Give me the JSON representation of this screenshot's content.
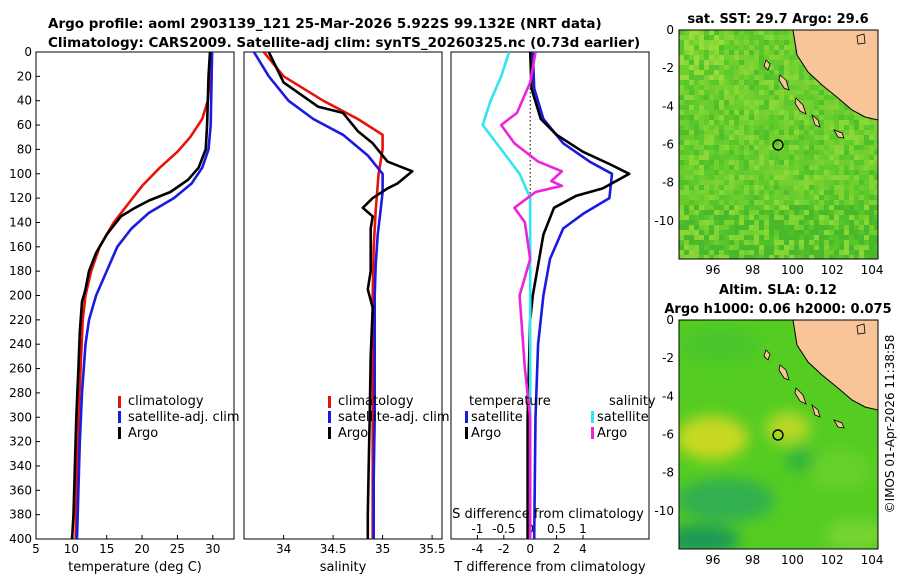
{
  "title_line1": "Argo profile: aoml 2903139_121 25-Mar-2026 5.922S 99.132E (NRT data)",
  "title_line2": "Climatology: CARS2009. Satellite-adj clim: synTS_20260325.nc (0.73d earlier)",
  "credit": "©IMOS 01-Apr-2026 11:38:58",
  "colors": {
    "climatology": "#e8120c",
    "satellite": "#1a1ae0",
    "argo": "#000000",
    "sat_salinity": "#33e6ee",
    "argo_salinity": "#ee22dd",
    "land": "#f7c597",
    "ocean": "#55cc33"
  },
  "chart_data": [
    {
      "type": "line",
      "id": "temperature",
      "xlabel": "temperature (deg C)",
      "ylabel": "",
      "xlim": [
        5,
        33
      ],
      "ylim": [
        400,
        0
      ],
      "xticks": [
        5,
        10,
        15,
        20,
        25,
        30
      ],
      "yticks": [
        0,
        20,
        40,
        60,
        80,
        100,
        120,
        140,
        160,
        180,
        200,
        220,
        240,
        260,
        280,
        300,
        320,
        340,
        360,
        380,
        400
      ],
      "legend": [
        "climatology",
        "satellite-adj. clim",
        "Argo"
      ],
      "legend_position": "lower-right",
      "series": [
        {
          "name": "climatology",
          "points": [
            [
              29.8,
              0
            ],
            [
              29.6,
              20
            ],
            [
              29.3,
              40
            ],
            [
              28.5,
              55
            ],
            [
              26.8,
              70
            ],
            [
              25,
              82
            ],
            [
              22.5,
              95
            ],
            [
              20,
              110
            ],
            [
              18,
              125
            ],
            [
              16,
              140
            ],
            [
              14,
              160
            ],
            [
              12.8,
              180
            ],
            [
              12,
              200
            ],
            [
              11.6,
              220
            ],
            [
              11.3,
              260
            ],
            [
              11,
              300
            ],
            [
              10.8,
              340
            ],
            [
              10.6,
              400
            ]
          ]
        },
        {
          "name": "satellite-adj. clim",
          "points": [
            [
              29.9,
              0
            ],
            [
              29.8,
              30
            ],
            [
              29.7,
              60
            ],
            [
              29.4,
              80
            ],
            [
              28.5,
              95
            ],
            [
              27,
              108
            ],
            [
              24.5,
              120
            ],
            [
              21,
              132
            ],
            [
              18.5,
              145
            ],
            [
              16.5,
              160
            ],
            [
              15,
              180
            ],
            [
              13.5,
              200
            ],
            [
              12.5,
              220
            ],
            [
              12,
              240
            ],
            [
              11.5,
              280
            ],
            [
              11.2,
              320
            ],
            [
              11,
              360
            ],
            [
              10.8,
              400
            ]
          ]
        },
        {
          "name": "Argo",
          "points": [
            [
              29.6,
              0
            ],
            [
              29.4,
              20
            ],
            [
              29.3,
              40
            ],
            [
              29.2,
              60
            ],
            [
              29,
              80
            ],
            [
              28,
              95
            ],
            [
              26.5,
              105
            ],
            [
              24,
              115
            ],
            [
              21,
              122
            ],
            [
              19,
              128
            ],
            [
              17,
              135
            ],
            [
              15,
              150
            ],
            [
              13.5,
              165
            ],
            [
              12.5,
              180
            ],
            [
              12,
              195
            ],
            [
              11.5,
              205
            ],
            [
              11.2,
              230
            ],
            [
              11,
              260
            ],
            [
              10.7,
              300
            ],
            [
              10.5,
              340
            ],
            [
              10.3,
              380
            ],
            [
              10.1,
              400
            ]
          ]
        }
      ]
    },
    {
      "type": "line",
      "id": "salinity",
      "xlabel": "salinity",
      "ylabel": "",
      "xlim": [
        33.6,
        35.6
      ],
      "ylim": [
        400,
        0
      ],
      "xticks": [
        34,
        34.5,
        35,
        35.5
      ],
      "legend": [
        "climatology",
        "satellite-adj. clim",
        "Argo"
      ],
      "legend_position": "lower-right",
      "series": [
        {
          "name": "climatology",
          "points": [
            [
              33.8,
              0
            ],
            [
              34.0,
              20
            ],
            [
              34.4,
              40
            ],
            [
              34.75,
              55
            ],
            [
              35.0,
              68
            ],
            [
              35.0,
              80
            ],
            [
              34.96,
              100
            ],
            [
              34.93,
              130
            ],
            [
              34.91,
              160
            ],
            [
              34.9,
              200
            ],
            [
              34.9,
              250
            ],
            [
              34.9,
              300
            ],
            [
              34.9,
              350
            ],
            [
              34.9,
              400
            ]
          ]
        },
        {
          "name": "satellite-adj. clim",
          "points": [
            [
              33.7,
              0
            ],
            [
              33.85,
              20
            ],
            [
              34.05,
              40
            ],
            [
              34.3,
              55
            ],
            [
              34.6,
              68
            ],
            [
              34.85,
              85
            ],
            [
              35.0,
              100
            ],
            [
              35.0,
              115
            ],
            [
              34.98,
              130
            ],
            [
              34.95,
              150
            ],
            [
              34.93,
              175
            ],
            [
              34.92,
              200
            ],
            [
              34.92,
              250
            ],
            [
              34.92,
              300
            ],
            [
              34.91,
              350
            ],
            [
              34.91,
              400
            ]
          ]
        },
        {
          "name": "Argo",
          "points": [
            [
              33.85,
              0
            ],
            [
              34.0,
              25
            ],
            [
              34.35,
              45
            ],
            [
              34.6,
              50
            ],
            [
              34.75,
              65
            ],
            [
              34.9,
              75
            ],
            [
              35.05,
              90
            ],
            [
              35.3,
              98
            ],
            [
              35.15,
              108
            ],
            [
              35.05,
              112
            ],
            [
              34.9,
              120
            ],
            [
              34.8,
              128
            ],
            [
              34.9,
              135
            ],
            [
              34.88,
              145
            ],
            [
              34.88,
              180
            ],
            [
              34.85,
              195
            ],
            [
              34.9,
              210
            ],
            [
              34.88,
              250
            ],
            [
              34.87,
              300
            ],
            [
              34.86,
              340
            ],
            [
              34.85,
              380
            ],
            [
              34.85,
              400
            ]
          ]
        }
      ]
    },
    {
      "type": "line",
      "id": "difference",
      "xlabel": "T difference from climatology",
      "xlabel_top": "S difference from climatology",
      "xlim": [
        -6,
        9
      ],
      "ylim": [
        400,
        0
      ],
      "xticks": [
        -4,
        -2,
        0,
        2,
        4
      ],
      "xticks_salinity": [
        "-1",
        "-0.5",
        "0",
        "0.5",
        "1"
      ],
      "xticks_salinity_values": [
        -1,
        -0.5,
        0,
        0.5,
        1
      ],
      "legend_headers": [
        "temperature",
        "salinity"
      ],
      "legend": [
        "satellite",
        "Argo",
        "satellite",
        "Argo"
      ],
      "legend_position": "lower-right",
      "series": [
        {
          "name": "T satellite",
          "points": [
            [
              0.2,
              0
            ],
            [
              0.3,
              30
            ],
            [
              1,
              55
            ],
            [
              2.5,
              75
            ],
            [
              4.5,
              90
            ],
            [
              6.2,
              100
            ],
            [
              6,
              120
            ],
            [
              4,
              133
            ],
            [
              2.5,
              145
            ],
            [
              1.5,
              170
            ],
            [
              1,
              200
            ],
            [
              0.6,
              240
            ],
            [
              0.4,
              300
            ],
            [
              0.3,
              400
            ]
          ]
        },
        {
          "name": "T Argo",
          "points": [
            [
              0,
              0
            ],
            [
              0.1,
              30
            ],
            [
              0.8,
              55
            ],
            [
              2,
              68
            ],
            [
              4,
              82
            ],
            [
              6,
              92
            ],
            [
              7.5,
              100
            ],
            [
              5.5,
              112
            ],
            [
              3.5,
              118
            ],
            [
              1.8,
              128
            ],
            [
              1,
              150
            ],
            [
              0.6,
              175
            ],
            [
              0.2,
              200
            ],
            [
              0,
              220
            ],
            [
              -0.1,
              260
            ],
            [
              -0.2,
              300
            ],
            [
              -0.2,
              350
            ],
            [
              -0.2,
              400
            ]
          ]
        },
        {
          "name": "S satellite",
          "points": [
            [
              -0.4,
              0
            ],
            [
              -0.55,
              20
            ],
            [
              -0.75,
              40
            ],
            [
              -0.9,
              60
            ],
            [
              -0.55,
              80
            ],
            [
              -0.2,
              100
            ],
            [
              0.0,
              120
            ],
            [
              0.0,
              160
            ],
            [
              0.0,
              200
            ],
            [
              0.0,
              300
            ],
            [
              0.0,
              400
            ]
          ]
        },
        {
          "name": "S Argo",
          "points": [
            [
              0.1,
              0
            ],
            [
              0.0,
              25
            ],
            [
              -0.25,
              50
            ],
            [
              -0.55,
              60
            ],
            [
              -0.3,
              75
            ],
            [
              0.15,
              90
            ],
            [
              0.6,
              98
            ],
            [
              0.4,
              106
            ],
            [
              0.6,
              110
            ],
            [
              0.1,
              115
            ],
            [
              -0.3,
              128
            ],
            [
              -0.1,
              140
            ],
            [
              0.0,
              170
            ],
            [
              -0.2,
              200
            ],
            [
              -0.1,
              260
            ],
            [
              0.0,
              300
            ],
            [
              0.0,
              400
            ]
          ]
        }
      ]
    },
    {
      "type": "heatmap",
      "id": "sst_map",
      "title": "sat. SST: 29.7 Argo: 29.6",
      "xlim": [
        94.3,
        104.3
      ],
      "ylim": [
        -12,
        0
      ],
      "xticks": [
        96,
        98,
        100,
        102,
        104
      ],
      "yticks": [
        0,
        -2,
        -4,
        -6,
        -8,
        -10
      ],
      "marker": {
        "lon": 99.132,
        "lat": -5.922
      }
    },
    {
      "type": "heatmap",
      "id": "sla_map",
      "title_line1": "Altim. SLA: 0.12",
      "title_line2": "Argo h1000: 0.06 h2000: 0.075",
      "xlim": [
        94.3,
        104.3
      ],
      "ylim": [
        -12,
        0
      ],
      "xticks": [
        96,
        98,
        100,
        102,
        104
      ],
      "yticks": [
        0,
        -2,
        -4,
        -6,
        -8,
        -10
      ],
      "marker": {
        "lon": 99.132,
        "lat": -5.922
      }
    }
  ]
}
